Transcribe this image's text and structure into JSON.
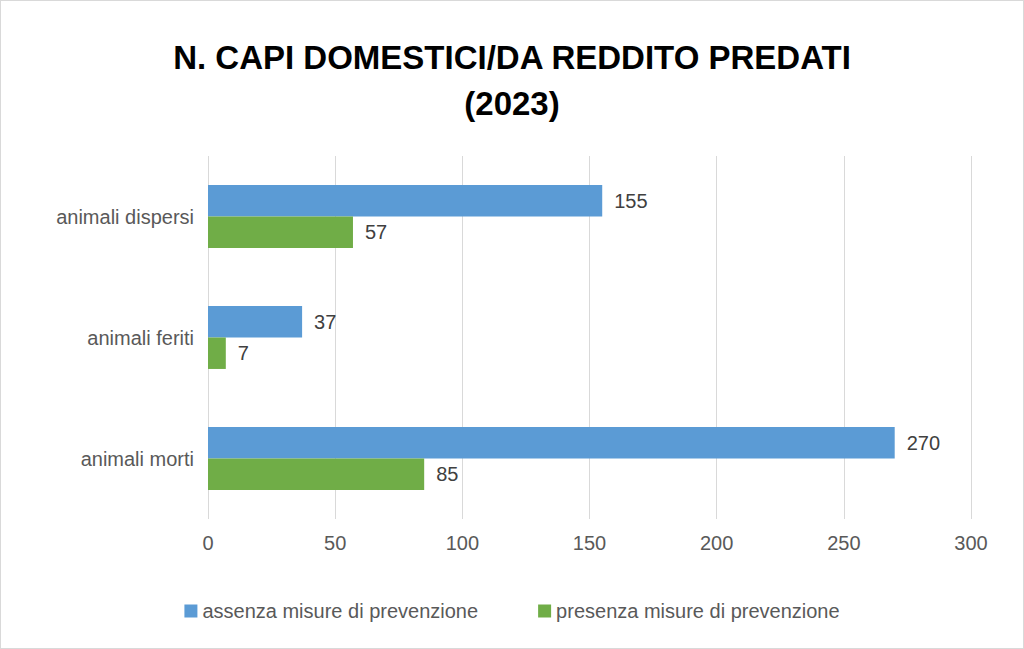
{
  "chart_data": {
    "type": "bar",
    "orientation": "horizontal",
    "title": "N. CAPI DOMESTICI/DA REDDITO PREDATI\n(2023)",
    "categories": [
      "animali dispersi",
      "animali feriti",
      "animali morti"
    ],
    "series": [
      {
        "name": "assenza misure di prevenzione",
        "color": "#5b9bd5",
        "values": [
          155,
          37,
          270
        ]
      },
      {
        "name": "presenza misure di prevenzione",
        "color": "#70ad47",
        "values": [
          57,
          7,
          85
        ]
      }
    ],
    "xlim": [
      0,
      300
    ],
    "xticks": [
      0,
      50,
      100,
      150,
      200,
      250,
      300
    ],
    "grid": true,
    "legend": "bottom",
    "data_labels": true
  }
}
